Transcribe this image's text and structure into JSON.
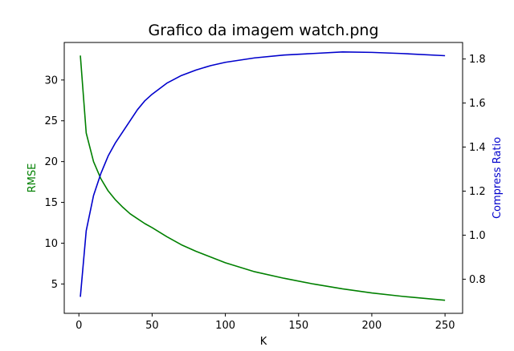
{
  "chart_data": {
    "type": "line",
    "title": "Grafico da imagem watch.png",
    "xlabel": "K",
    "ylabel_left": "RMSE",
    "ylabel_right": "Compress Ratio",
    "xlim": [
      -10,
      262
    ],
    "ylim_left": [
      1.4,
      34.6
    ],
    "ylim_right": [
      0.645,
      1.875
    ],
    "x_ticks": [
      0,
      50,
      100,
      150,
      200,
      250
    ],
    "y_ticks_left": [
      5,
      10,
      15,
      20,
      25,
      30
    ],
    "y_ticks_right": [
      0.8,
      1.0,
      1.2,
      1.4,
      1.6,
      1.8
    ],
    "grid": false,
    "series": [
      {
        "axis": "left",
        "color": "#008000",
        "x": [
          1,
          5,
          10,
          15,
          20,
          25,
          30,
          35,
          40,
          45,
          50,
          60,
          70,
          80,
          90,
          100,
          120,
          140,
          160,
          180,
          200,
          220,
          250
        ],
        "values": [
          33.0,
          23.5,
          20.0,
          17.9,
          16.4,
          15.3,
          14.4,
          13.6,
          13.0,
          12.4,
          11.9,
          10.8,
          9.8,
          9.0,
          8.3,
          7.6,
          6.5,
          5.7,
          5.0,
          4.4,
          3.9,
          3.5,
          3.0
        ]
      },
      {
        "axis": "right",
        "color": "#0000cc",
        "x": [
          1,
          5,
          10,
          15,
          20,
          25,
          30,
          35,
          40,
          45,
          50,
          60,
          70,
          80,
          90,
          100,
          120,
          140,
          160,
          180,
          200,
          220,
          250
        ],
        "values": [
          0.72,
          1.02,
          1.18,
          1.28,
          1.36,
          1.42,
          1.47,
          1.52,
          1.57,
          1.61,
          1.64,
          1.69,
          1.725,
          1.75,
          1.77,
          1.785,
          1.805,
          1.818,
          1.825,
          1.832,
          1.83,
          1.825,
          1.815
        ]
      }
    ]
  }
}
